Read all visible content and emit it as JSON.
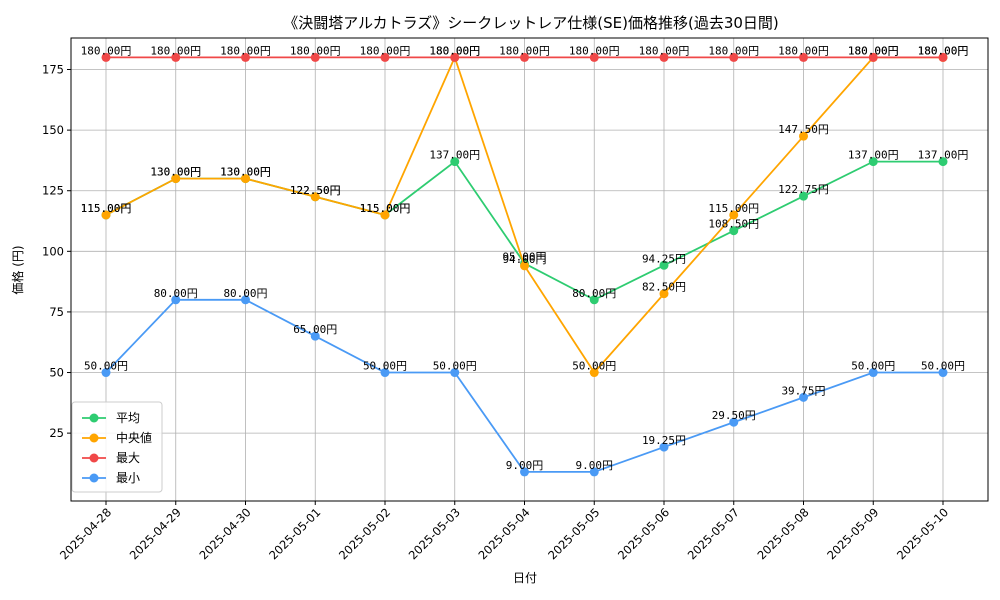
{
  "chart_data": {
    "type": "line",
    "title": "《決闘塔アルカトラズ》シークレットレア仕様(SE)価格推移(過去30日間)",
    "xlabel": "日付",
    "ylabel": "価格 (円)",
    "ylim": [
      -3,
      188
    ],
    "yticks": [
      25,
      50,
      75,
      100,
      125,
      150,
      175
    ],
    "grid": true,
    "legend_position": "lower-left",
    "categories": [
      "2025-04-28",
      "2025-04-29",
      "2025-04-30",
      "2025-05-01",
      "2025-05-02",
      "2025-05-03",
      "2025-05-04",
      "2025-05-05",
      "2025-05-06",
      "2025-05-07",
      "2025-05-08",
      "2025-05-09",
      "2025-05-10"
    ],
    "series": [
      {
        "name": "平均",
        "color": "#2ecc71",
        "values": [
          115.0,
          130.0,
          130.0,
          122.5,
          115.0,
          137.0,
          95.0,
          80.0,
          94.25,
          108.5,
          122.75,
          137.0,
          137.0
        ]
      },
      {
        "name": "中央値",
        "color": "#ffa500",
        "values": [
          115.0,
          130.0,
          130.0,
          122.5,
          115.0,
          180.0,
          94.0,
          50.0,
          82.5,
          115.0,
          147.5,
          180.0,
          180.0
        ]
      },
      {
        "name": "最大",
        "color": "#f04848",
        "values": [
          180.0,
          180.0,
          180.0,
          180.0,
          180.0,
          180.0,
          180.0,
          180.0,
          180.0,
          180.0,
          180.0,
          180.0,
          180.0
        ]
      },
      {
        "name": "最小",
        "color": "#4a9af5",
        "values": [
          50.0,
          80.0,
          80.0,
          65.0,
          50.0,
          50.0,
          9.0,
          9.0,
          19.25,
          29.5,
          39.75,
          50.0,
          50.0
        ]
      }
    ],
    "label_unit": "円"
  }
}
